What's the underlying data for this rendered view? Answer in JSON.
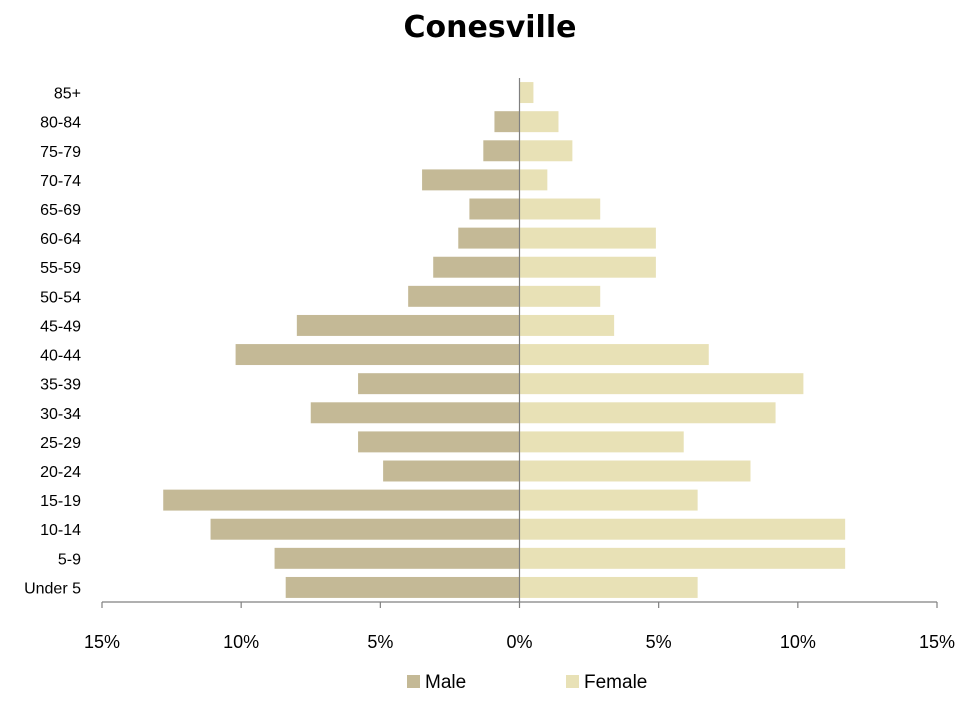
{
  "chart_data": {
    "type": "bar",
    "orientation": "horizontal",
    "title": "Conesville",
    "categories": [
      "Under 5",
      "5-9",
      "10-14",
      "15-19",
      "20-24",
      "25-29",
      "30-34",
      "35-39",
      "40-44",
      "45-49",
      "50-54",
      "55-59",
      "60-64",
      "65-69",
      "70-74",
      "75-79",
      "80-84",
      "85+"
    ],
    "series": [
      {
        "name": "Male",
        "color": "#c4b996",
        "values": [
          -8.4,
          -8.8,
          -11.1,
          -12.8,
          -4.9,
          -5.8,
          -7.5,
          -5.8,
          -10.2,
          -8.0,
          -4.0,
          -3.1,
          -2.2,
          -1.8,
          -3.5,
          -1.3,
          -0.9,
          0.0
        ]
      },
      {
        "name": "Female",
        "color": "#e8e1b6",
        "values": [
          6.4,
          11.7,
          11.7,
          6.4,
          8.3,
          5.9,
          9.2,
          10.2,
          6.8,
          3.4,
          2.9,
          4.9,
          4.9,
          2.9,
          1.0,
          1.9,
          1.4,
          0.5
        ]
      }
    ],
    "xlim": [
      -15,
      15
    ],
    "xticks": [
      -15,
      -10,
      -5,
      0,
      5,
      10,
      15
    ],
    "xtick_labels": [
      "15%",
      "10%",
      "5%",
      "0%",
      "5%",
      "10%",
      "15%"
    ],
    "xlabel": "",
    "ylabel": "",
    "grid": false,
    "legend_position": "bottom"
  }
}
